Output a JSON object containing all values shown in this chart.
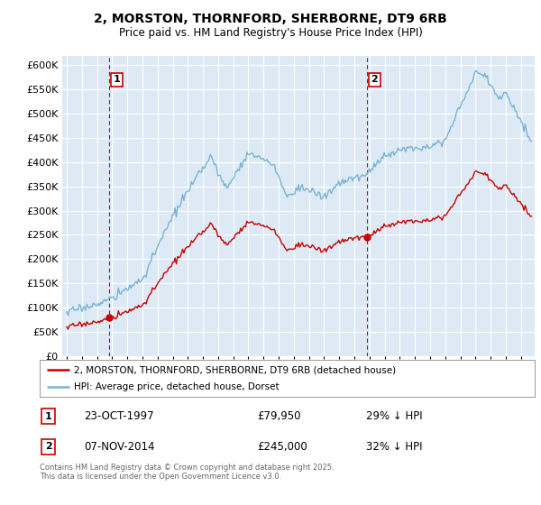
{
  "title": "2, MORSTON, THORNFORD, SHERBORNE, DT9 6RB",
  "subtitle": "Price paid vs. HM Land Registry's House Price Index (HPI)",
  "legend_line1": "2, MORSTON, THORNFORD, SHERBORNE, DT9 6RB (detached house)",
  "legend_line2": "HPI: Average price, detached house, Dorset",
  "annotation1_label": "1",
  "annotation1_date": "23-OCT-1997",
  "annotation1_price": "£79,950",
  "annotation1_hpi": "29% ↓ HPI",
  "annotation2_label": "2",
  "annotation2_date": "07-NOV-2014",
  "annotation2_price": "£245,000",
  "annotation2_hpi": "32% ↓ HPI",
  "footer": "Contains HM Land Registry data © Crown copyright and database right 2025.\nThis data is licensed under the Open Government Licence v3.0.",
  "hpi_color": "#7ab3d4",
  "price_color": "#cc0000",
  "vline_color": "#cc0000",
  "background_color": "#ddeaf5",
  "ylim": [
    0,
    620000
  ],
  "yticks": [
    0,
    50000,
    100000,
    150000,
    200000,
    250000,
    300000,
    350000,
    400000,
    450000,
    500000,
    550000,
    600000
  ],
  "sale1_x": 1997.81,
  "sale1_y": 79950,
  "sale2_x": 2014.85,
  "sale2_y": 245000,
  "xlim_left": 1994.7,
  "xlim_right": 2025.9
}
